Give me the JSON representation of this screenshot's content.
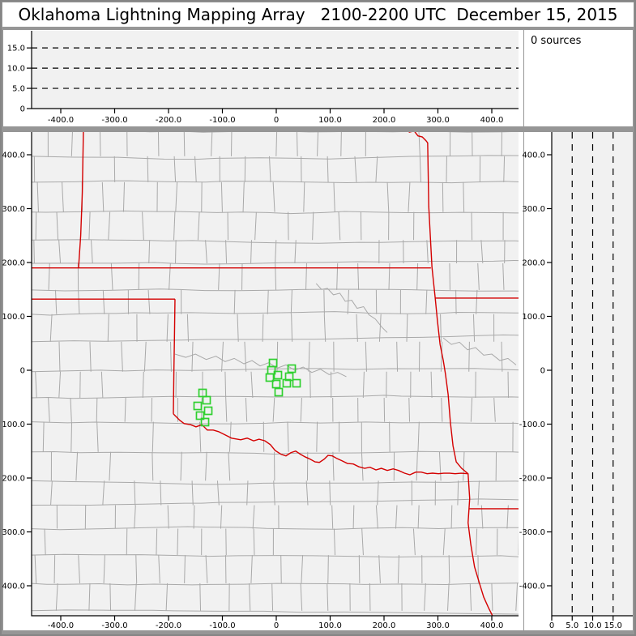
{
  "title": "Oklahoma Lightning Mapping Array   2100-2200 UTC  December 15, 2015",
  "sources_panel": {
    "label": "0 sources"
  },
  "colors": {
    "frame": "#969696",
    "panel_bg": "#ffffff",
    "plot_bg": "#f1f1f1",
    "county_line": "#a9a9a9",
    "state_border": "#d40000",
    "station_marker": "#2fd02f",
    "axis": "#000000"
  },
  "axes": {
    "ew_km": {
      "range": [
        -454,
        454
      ],
      "ticks": [
        -400,
        -300,
        -200,
        -100,
        0,
        100,
        200,
        300,
        400
      ],
      "labels": [
        "-400.0",
        "-300.0",
        "-200.0",
        "-100.0",
        "0",
        "100.0",
        "200.0",
        "300.0",
        "400.0"
      ]
    },
    "ns_km": {
      "range": [
        -455,
        442
      ],
      "ticks": [
        400,
        300,
        200,
        100,
        0,
        -100,
        -200,
        -300,
        -400
      ],
      "labels": [
        "400.0",
        "300.0",
        "200.0",
        "100.0",
        "0",
        "-100.0",
        "-200.0",
        "-300.0",
        "-400.0"
      ]
    },
    "alt_km": {
      "range": [
        0,
        19.2
      ],
      "ticks": [
        0,
        5,
        10,
        15
      ],
      "labels": [
        "0",
        "5.0",
        "10.0",
        "15.0"
      ],
      "dashed_gridlines": [
        5,
        10,
        15
      ]
    }
  },
  "chart_data": {
    "type": "scatter",
    "sources_count": 0,
    "panels": [
      {
        "id": "altitude-vs-eastwest",
        "x_axis": "ew_km",
        "y_axis": "alt_km",
        "points": []
      },
      {
        "id": "plan-view-map",
        "x_axis": "ew_km",
        "y_axis": "ns_km",
        "points": []
      },
      {
        "id": "altitude-vs-northsouth",
        "x_axis": "alt_km",
        "y_axis": "ns_km",
        "points": []
      }
    ],
    "stations_km": [
      [
        -6.0,
        13.5
      ],
      [
        -9.0,
        0.0
      ],
      [
        -12.0,
        -13.5
      ],
      [
        3.0,
        -9.0
      ],
      [
        0.0,
        -25.6
      ],
      [
        4.5,
        -40.6
      ],
      [
        28.6,
        3.0
      ],
      [
        24.1,
        -12.0
      ],
      [
        19.5,
        -24.1
      ],
      [
        37.6,
        -24.1
      ],
      [
        -136.8,
        -42.1
      ],
      [
        -129.3,
        -55.6
      ],
      [
        -145.9,
        -66.2
      ],
      [
        -126.3,
        -75.2
      ],
      [
        -141.4,
        -84.2
      ],
      [
        -132.3,
        -96.2
      ]
    ],
    "state_borders_km": [
      [
        [
          -454,
          190
        ],
        [
          287,
          190
        ]
      ],
      [
        [
          -358,
          443
        ],
        [
          -360,
          330
        ],
        [
          -363,
          250
        ],
        [
          -367,
          190
        ]
      ],
      [
        [
          -454,
          132
        ],
        [
          -188,
          132
        ]
      ],
      [
        [
          -188,
          132
        ],
        [
          -189,
          60
        ],
        [
          -190,
          0
        ],
        [
          -191,
          -81
        ]
      ],
      [
        [
          295,
          134
        ],
        [
          456,
          134
        ]
      ],
      [
        [
          358,
          -257
        ],
        [
          456,
          -257
        ]
      ],
      [
        [
          239,
          450
        ],
        [
          247,
          442
        ],
        [
          256,
          444
        ],
        [
          263,
          435
        ],
        [
          271,
          433
        ],
        [
          278,
          426
        ],
        [
          281,
          422
        ],
        [
          283,
          304
        ],
        [
          289,
          191
        ],
        [
          295,
          134
        ],
        [
          299,
          93
        ],
        [
          304,
          48
        ],
        [
          310,
          18
        ],
        [
          314,
          -7
        ],
        [
          319,
          -45
        ],
        [
          323,
          -95
        ],
        [
          328,
          -140
        ],
        [
          334,
          -170
        ],
        [
          344,
          -182
        ],
        [
          356,
          -192
        ],
        [
          359,
          -238
        ],
        [
          356,
          -283
        ],
        [
          361,
          -323
        ],
        [
          368,
          -365
        ],
        [
          377,
          -395
        ],
        [
          385,
          -421
        ],
        [
          394,
          -441
        ],
        [
          401,
          -455
        ]
      ],
      [
        [
          -191,
          -81
        ],
        [
          -179,
          -93
        ],
        [
          -171,
          -99
        ],
        [
          -159,
          -101
        ],
        [
          -149,
          -105
        ],
        [
          -138,
          -101
        ],
        [
          -128,
          -111
        ],
        [
          -117,
          -111
        ],
        [
          -107,
          -114
        ],
        [
          -95,
          -120
        ],
        [
          -83,
          -126
        ],
        [
          -66,
          -129
        ],
        [
          -54,
          -126
        ],
        [
          -42,
          -131
        ],
        [
          -32,
          -128
        ],
        [
          -21,
          -131
        ],
        [
          -11,
          -138
        ],
        [
          -2,
          -149
        ],
        [
          9,
          -156
        ],
        [
          18,
          -159
        ],
        [
          27,
          -153
        ],
        [
          36,
          -150
        ],
        [
          45,
          -156
        ],
        [
          54,
          -161
        ],
        [
          63,
          -165
        ],
        [
          72,
          -170
        ],
        [
          80,
          -171
        ],
        [
          89,
          -165
        ],
        [
          96,
          -158
        ],
        [
          104,
          -159
        ],
        [
          113,
          -164
        ],
        [
          122,
          -168
        ],
        [
          132,
          -173
        ],
        [
          143,
          -174
        ],
        [
          153,
          -179
        ],
        [
          164,
          -182
        ],
        [
          174,
          -180
        ],
        [
          185,
          -185
        ],
        [
          195,
          -182
        ],
        [
          206,
          -186
        ],
        [
          217,
          -183
        ],
        [
          227,
          -186
        ],
        [
          238,
          -191
        ],
        [
          248,
          -194
        ],
        [
          259,
          -189
        ],
        [
          269,
          -189
        ],
        [
          280,
          -192
        ],
        [
          290,
          -191
        ],
        [
          301,
          -192
        ],
        [
          311,
          -191
        ],
        [
          322,
          -191
        ],
        [
          332,
          -192
        ],
        [
          343,
          -191
        ],
        [
          356,
          -192
        ]
      ]
    ],
    "rivers_km": [
      [
        [
          -188,
          30
        ],
        [
          -168,
          24
        ],
        [
          -150,
          30
        ],
        [
          -130,
          20
        ],
        [
          -112,
          26
        ],
        [
          -95,
          16
        ],
        [
          -78,
          22
        ],
        [
          -60,
          12
        ],
        [
          -45,
          18
        ],
        [
          -30,
          8
        ],
        [
          -14,
          14
        ],
        [
          2,
          4
        ],
        [
          18,
          10
        ],
        [
          34,
          0
        ],
        [
          50,
          6
        ],
        [
          66,
          -4
        ],
        [
          82,
          2
        ],
        [
          98,
          -8
        ],
        [
          114,
          -4
        ],
        [
          130,
          -12
        ]
      ],
      [
        [
          74,
          161
        ],
        [
          84,
          150
        ],
        [
          95,
          152
        ],
        [
          106,
          140
        ],
        [
          118,
          143
        ],
        [
          128,
          128
        ],
        [
          140,
          130
        ],
        [
          150,
          115
        ],
        [
          162,
          118
        ],
        [
          172,
          103
        ],
        [
          184,
          95
        ],
        [
          196,
          80
        ],
        [
          206,
          70
        ]
      ],
      [
        [
          310,
          60
        ],
        [
          325,
          48
        ],
        [
          340,
          52
        ],
        [
          355,
          38
        ],
        [
          370,
          42
        ],
        [
          385,
          28
        ],
        [
          400,
          30
        ],
        [
          415,
          18
        ],
        [
          430,
          22
        ],
        [
          445,
          10
        ]
      ]
    ],
    "county_texture": {
      "seed": 42,
      "row_step_km": [
        40,
        18
      ],
      "col_step_km": [
        36,
        26
      ],
      "skip_probability": 0.1
    }
  }
}
